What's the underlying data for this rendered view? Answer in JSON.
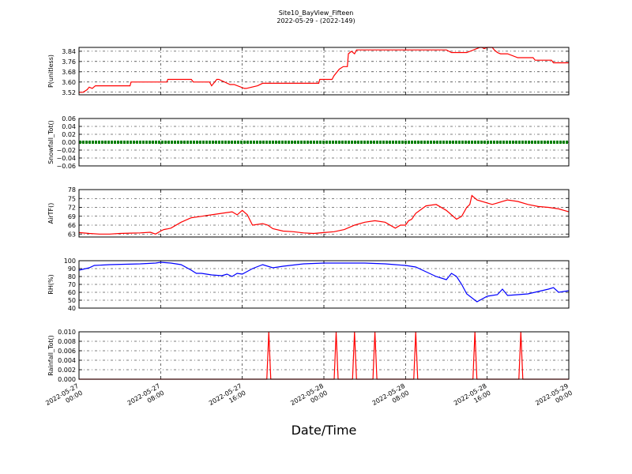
{
  "chart_data": {
    "type": "line",
    "title": "Site10_BayView_Fifteen",
    "subtitle": "2022-05-29 - (2022-149)",
    "xlabel": "Date/Time",
    "x_ticks": [
      "2022-05-27\n00:00",
      "2022-05-27\n08:00",
      "2022-05-27\n16:00",
      "2022-05-28\n00:00",
      "2022-05-28\n08:00",
      "2022-05-28\n16:00",
      "2022-05-29\n00:00"
    ],
    "x_range_hours": [
      0,
      48
    ],
    "grid": true,
    "panels": [
      {
        "ylabel": "P(unitless)",
        "color": "#ff0000",
        "ylim": [
          3.5,
          3.87
        ],
        "yticks": [
          "3.52",
          "3.60",
          "3.68",
          "3.76",
          "3.84"
        ],
        "ytick_values": [
          3.52,
          3.6,
          3.68,
          3.76,
          3.84
        ],
        "x": [
          0,
          0.4,
          0.8,
          1.0,
          1.3,
          1.6,
          3,
          5,
          5.1,
          7,
          8,
          8.6,
          8.7,
          11,
          11.2,
          12.8,
          13,
          13.5,
          13.7,
          14.8,
          15.2,
          16.2,
          16.4,
          17.5,
          18,
          23.5,
          23.6,
          24.8,
          25,
          25.5,
          25.9,
          26.3,
          26.4,
          26.7,
          27,
          27.2,
          27.5,
          27.9,
          28,
          29,
          32,
          33,
          35,
          36,
          36.5,
          37,
          38,
          39.3,
          39.5,
          39.7,
          40,
          40.5,
          40.7,
          41,
          41.3,
          41.5,
          42,
          43,
          43.2,
          44.5,
          44.7,
          46.3,
          46.5,
          47,
          48
        ],
        "values": [
          3.52,
          3.52,
          3.54,
          3.56,
          3.55,
          3.57,
          3.57,
          3.57,
          3.6,
          3.6,
          3.6,
          3.6,
          3.62,
          3.62,
          3.6,
          3.6,
          3.57,
          3.62,
          3.62,
          3.58,
          3.58,
          3.55,
          3.55,
          3.57,
          3.59,
          3.59,
          3.62,
          3.62,
          3.65,
          3.7,
          3.72,
          3.72,
          3.82,
          3.84,
          3.82,
          3.85,
          3.85,
          3.85,
          3.85,
          3.85,
          3.85,
          3.85,
          3.85,
          3.85,
          3.83,
          3.83,
          3.83,
          3.87,
          3.88,
          3.86,
          3.88,
          3.88,
          3.85,
          3.83,
          3.82,
          3.82,
          3.82,
          3.79,
          3.79,
          3.79,
          3.77,
          3.77,
          3.75,
          3.75,
          3.75
        ]
      },
      {
        "ylabel": "Snowfall_Tot()",
        "color": "#007f00",
        "ylim": [
          -0.06,
          0.06
        ],
        "yticks": [
          "−0.06",
          "−0.04",
          "−0.02",
          "0.00",
          "0.02",
          "0.04",
          "0.06"
        ],
        "ytick_values": [
          -0.06,
          -0.04,
          -0.02,
          0.0,
          0.02,
          0.04,
          0.06
        ],
        "x": [
          0,
          48
        ],
        "values": [
          0,
          0
        ]
      },
      {
        "ylabel": "AirTF()",
        "color": "#ff0000",
        "ylim": [
          62,
          78
        ],
        "yticks": [
          "63",
          "66",
          "69",
          "72",
          "75",
          "78"
        ],
        "ytick_values": [
          63,
          66,
          69,
          72,
          75,
          78
        ],
        "x": [
          0,
          1,
          2,
          3,
          4,
          5,
          6,
          7,
          7.5,
          8,
          8.3,
          8.6,
          9,
          10,
          11,
          12,
          13,
          14,
          15,
          15.5,
          16,
          16.5,
          17,
          18,
          18.5,
          19,
          20,
          21,
          22,
          23,
          24,
          25,
          26,
          27,
          28,
          29,
          30,
          31,
          31.5,
          32,
          32.3,
          32.6,
          33,
          34,
          35,
          36,
          37,
          37.5,
          38,
          38.3,
          38.5,
          39,
          40,
          40.5,
          41,
          42,
          43,
          44,
          45,
          46,
          47,
          48
        ],
        "values": [
          63.5,
          63.2,
          63.0,
          63.0,
          63.2,
          63.3,
          63.4,
          63.6,
          63.0,
          64.0,
          64.5,
          64.7,
          65.0,
          67.0,
          68.5,
          69.0,
          69.5,
          70.0,
          70.5,
          69.5,
          71.0,
          69.5,
          66.0,
          66.5,
          66.0,
          64.8,
          64.0,
          63.8,
          63.4,
          63.2,
          63.5,
          63.8,
          64.5,
          66.0,
          67.0,
          67.5,
          67.0,
          65.0,
          66.0,
          66.0,
          67.5,
          68.0,
          70.0,
          72.5,
          73.0,
          71.0,
          68.0,
          69.0,
          72.0,
          73.0,
          76.0,
          74.5,
          73.5,
          73.0,
          73.5,
          74.5,
          74.0,
          73.0,
          72.3,
          72.0,
          71.5,
          70.5
        ]
      },
      {
        "ylabel": "RH(%)",
        "color": "#0000ff",
        "ylim": [
          40,
          100
        ],
        "yticks": [
          "40",
          "50",
          "60",
          "70",
          "80",
          "90",
          "100"
        ],
        "ytick_values": [
          40,
          50,
          60,
          70,
          80,
          90,
          100
        ],
        "x": [
          0,
          1,
          1.5,
          3,
          6,
          7.5,
          8,
          9,
          10,
          11,
          11.5,
          12,
          13,
          14,
          14.5,
          15,
          15.5,
          16,
          17,
          18,
          19,
          20,
          22,
          24,
          26,
          28,
          30,
          31,
          32,
          33,
          34,
          35,
          36,
          36.5,
          37,
          37.5,
          38,
          39,
          40,
          41,
          41.5,
          42,
          43,
          44,
          45,
          46,
          46.5,
          47,
          48
        ],
        "values": [
          88,
          91,
          94,
          95,
          96,
          97,
          98,
          97,
          95,
          88,
          84,
          84,
          82,
          81,
          83,
          80,
          84,
          83,
          90,
          95,
          91,
          93,
          96,
          97,
          97,
          97,
          96,
          95,
          94,
          92,
          86,
          80,
          76,
          84,
          80,
          70,
          58,
          48,
          55,
          57,
          64,
          56,
          57,
          58,
          61,
          64,
          66,
          60,
          62
        ]
      },
      {
        "ylabel": "Rainfall_Tot()",
        "color": "#ff0000",
        "ylim": [
          0,
          0.01
        ],
        "yticks": [
          "0.000",
          "0.002",
          "0.004",
          "0.006",
          "0.008",
          "0.010"
        ],
        "ytick_values": [
          0,
          0.002,
          0.004,
          0.006,
          0.008,
          0.01
        ],
        "spikes_at": [
          18.6,
          25.2,
          27.0,
          29.0,
          33.0,
          38.8,
          43.3
        ],
        "spike_value": 0.01
      }
    ]
  }
}
